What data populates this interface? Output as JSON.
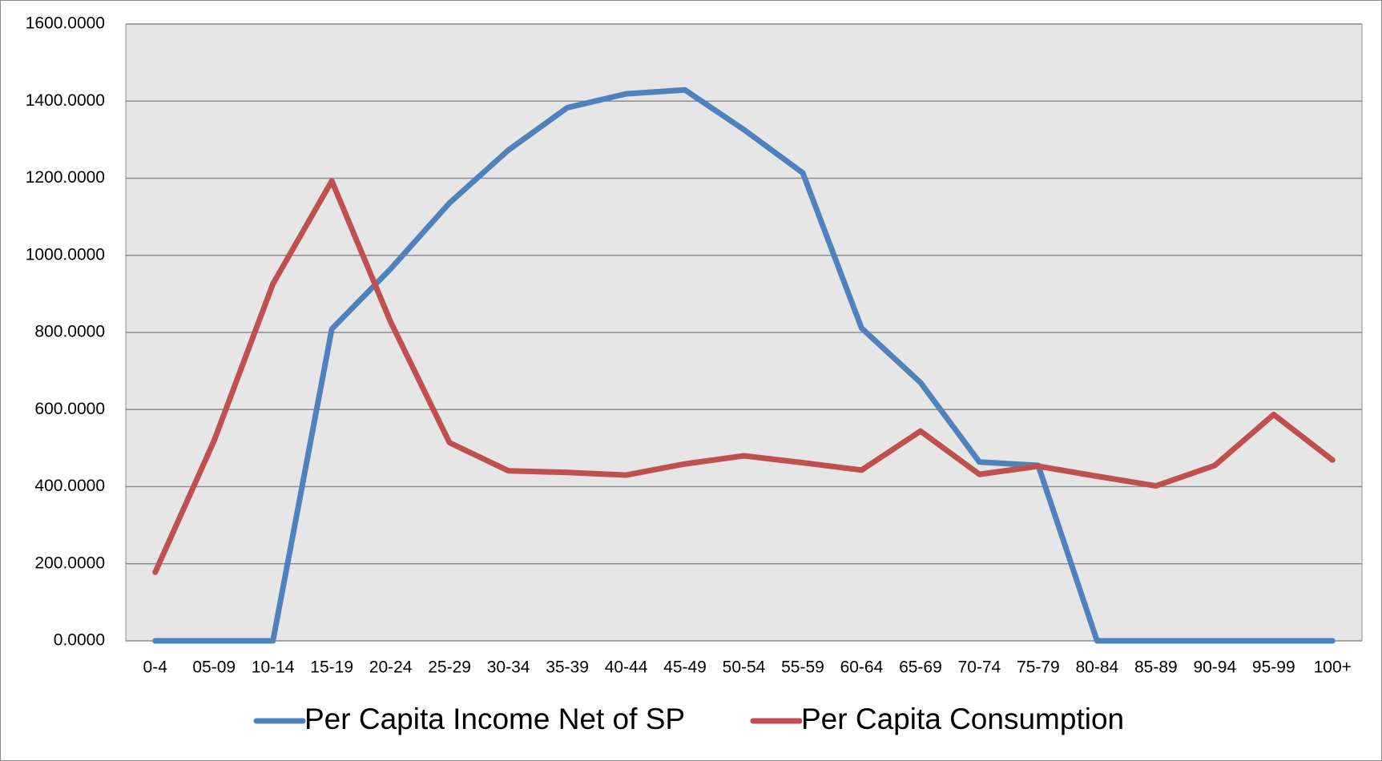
{
  "chart_data": {
    "type": "line",
    "categories": [
      "0-4",
      "05-09",
      "10-14",
      "15-19",
      "20-24",
      "25-29",
      "30-34",
      "35-39",
      "40-44",
      "45-49",
      "50-54",
      "55-59",
      "60-64",
      "65-69",
      "70-74",
      "75-79",
      "80-84",
      "85-89",
      "90-94",
      "95-99",
      "100+"
    ],
    "series": [
      {
        "name": "Per Capita Income Net of SP",
        "color": "#4f81bd",
        "values": [
          0,
          0,
          0,
          809,
          965,
          1136,
          1273,
          1383,
          1419,
          1429,
          1326,
          1214,
          811,
          670,
          464,
          455,
          0,
          0,
          0,
          0,
          0
        ]
      },
      {
        "name": "Per Capita Consumption",
        "color": "#c0504d",
        "values": [
          178,
          519,
          926,
          1193,
          827,
          514,
          441,
          437,
          430,
          459,
          480,
          462,
          443,
          544,
          432,
          453,
          427,
          402,
          455,
          587,
          469
        ]
      }
    ],
    "ylim": [
      0,
      1600
    ],
    "yticks": [
      {
        "value": 0,
        "label": "0.0000"
      },
      {
        "value": 200,
        "label": "200.0000"
      },
      {
        "value": 400,
        "label": "400.0000"
      },
      {
        "value": 600,
        "label": "600.0000"
      },
      {
        "value": 800,
        "label": "800.0000"
      },
      {
        "value": 1000,
        "label": "1000.0000"
      },
      {
        "value": 1200,
        "label": "1200.0000"
      },
      {
        "value": 1400,
        "label": "1400.0000"
      },
      {
        "value": 1600,
        "label": "1600.0000"
      }
    ],
    "grid": true,
    "legend": "bottom"
  }
}
